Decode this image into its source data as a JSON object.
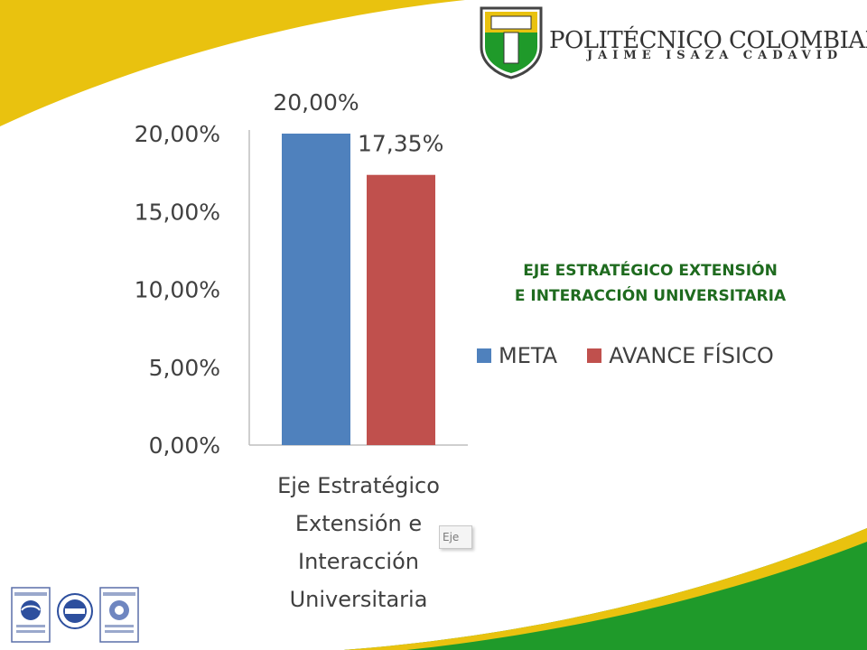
{
  "header": {
    "institution_name": "POLITÉCNICO COLOMBIANO",
    "institution_subtitle": "JAIME ISAZA CADAVID"
  },
  "chart_title": {
    "line1": "EJE ESTRATÉGICO EXTENSIÓN",
    "line2": "E INTERACCIÓN UNIVERSITARIA"
  },
  "chart_data": {
    "type": "bar",
    "categories": [
      "Eje Estratégico Extensión e Interacción Universitaria"
    ],
    "category_label_lines": [
      "Eje Estratégico",
      "Extensión e",
      "Interacción",
      "Universitaria"
    ],
    "series": [
      {
        "name": "META",
        "values": [
          20.0
        ],
        "value_labels": [
          "20,00%"
        ],
        "color": "#4f81bd"
      },
      {
        "name": "AVANCE FÍSICO",
        "values": [
          17.35
        ],
        "value_labels": [
          "17,35%"
        ],
        "color": "#c0504d"
      }
    ],
    "y_ticks": [
      0,
      5,
      10,
      15,
      20
    ],
    "y_tick_labels": [
      "0,00%",
      "5,00%",
      "10,00%",
      "15,00%",
      "20,00%"
    ],
    "ylim": [
      0,
      20
    ],
    "grid": false,
    "legend_position": "right",
    "overlay_tooltip_text": "Eje"
  },
  "colors": {
    "yellow_band": "#e9c20f",
    "green_band": "#1f9a2a",
    "title_green": "#1f6b1f",
    "text_gray": "#404040"
  }
}
